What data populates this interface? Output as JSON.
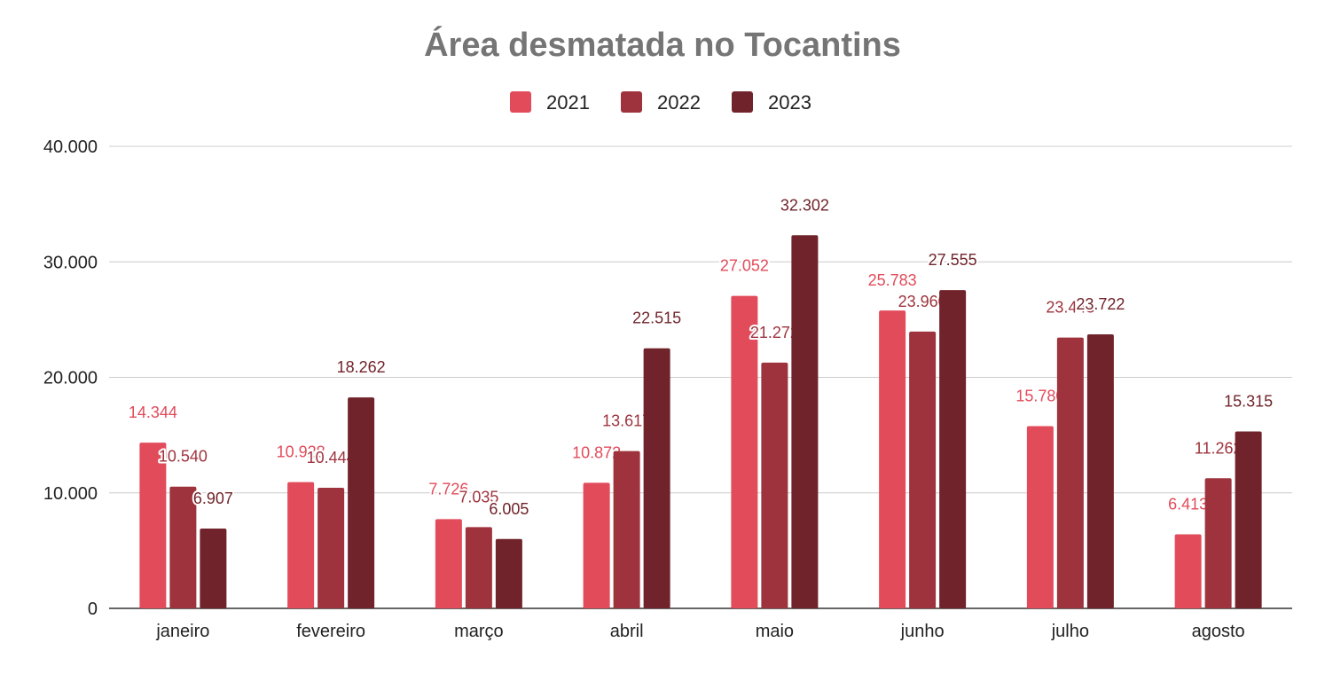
{
  "chart_data": {
    "type": "bar",
    "title": "Área desmatada no Tocantins",
    "xlabel": "",
    "ylabel": "",
    "categories": [
      "janeiro",
      "fevereiro",
      "março",
      "abril",
      "maio",
      "junho",
      "julho",
      "agosto"
    ],
    "series": [
      {
        "name": "2021",
        "color": "#e24b5a",
        "values": [
          14344,
          10928,
          7726,
          10872,
          27052,
          25783,
          15780,
          6413
        ],
        "labels": [
          "14.344",
          "10.928",
          "7.726",
          "10.872",
          "27.052",
          "25.783",
          "15.780",
          "6.413"
        ]
      },
      {
        "name": "2022",
        "color": "#9e333d",
        "values": [
          10540,
          10444,
          7035,
          13617,
          21272,
          23960,
          23443,
          11262
        ],
        "labels": [
          "10.540",
          "10.444",
          "7.035",
          "13.617",
          "21.272",
          "23.960",
          "23.443",
          "11.262"
        ]
      },
      {
        "name": "2023",
        "color": "#70232a",
        "values": [
          6907,
          18262,
          6005,
          22515,
          32302,
          27555,
          23722,
          15315
        ],
        "labels": [
          "6.907",
          "18.262",
          "6.005",
          "22.515",
          "32.302",
          "27.555",
          "23.722",
          "15.315"
        ]
      }
    ],
    "ylim": [
      0,
      40000
    ],
    "yticks": [
      0,
      10000,
      20000,
      30000,
      40000
    ],
    "ytick_labels": [
      "0",
      "10.000",
      "20.000",
      "30.000",
      "40.000"
    ],
    "grid": true,
    "legend": "top-center"
  }
}
